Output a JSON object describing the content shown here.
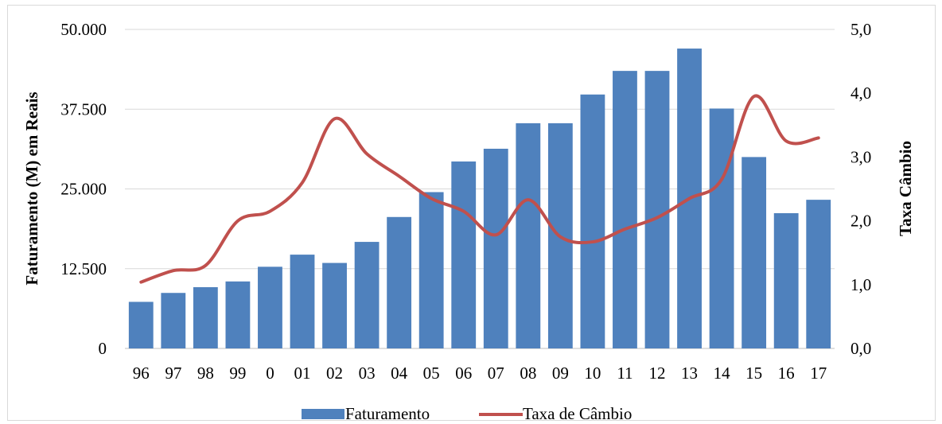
{
  "chart_data": {
    "type": "bar",
    "categories": [
      "96",
      "97",
      "98",
      "99",
      "0",
      "01",
      "02",
      "03",
      "04",
      "05",
      "06",
      "07",
      "08",
      "09",
      "10",
      "11",
      "12",
      "13",
      "14",
      "15",
      "16",
      "17"
    ],
    "series": [
      {
        "name": "Faturamento",
        "type": "bar",
        "axis": "left",
        "color": "#4f81bd",
        "values": [
          7300,
          8700,
          9600,
          10500,
          12800,
          14700,
          13400,
          16700,
          20600,
          24500,
          29300,
          31300,
          35300,
          35300,
          39800,
          43500,
          43500,
          47000,
          37600,
          30000,
          21200,
          23300
        ]
      },
      {
        "name": "Taxa de Câmbio",
        "type": "line",
        "axis": "right",
        "color": "#c0504d",
        "values": [
          1.04,
          1.22,
          1.3,
          2.0,
          2.15,
          2.6,
          3.6,
          3.05,
          2.7,
          2.35,
          2.15,
          1.78,
          2.33,
          1.75,
          1.67,
          1.87,
          2.05,
          2.35,
          2.65,
          3.95,
          3.25,
          3.3
        ]
      }
    ],
    "yaxis_left": {
      "label": "Faturamento (M) em Reais",
      "ticks": [
        "0",
        "12.500",
        "25.000",
        "37.500",
        "50.000"
      ],
      "tick_values": [
        0,
        12500,
        25000,
        37500,
        50000
      ],
      "ylim": [
        0,
        50000
      ]
    },
    "yaxis_right": {
      "label": "Taxa Câmbio",
      "ticks": [
        "0,0",
        "1,0",
        "2,0",
        "3,0",
        "4,0",
        "5,0"
      ],
      "tick_values": [
        0,
        1,
        2,
        3,
        4,
        5
      ],
      "ylim": [
        0,
        5
      ]
    },
    "grid": true,
    "legend": {
      "position": "bottom",
      "items": [
        "Faturamento",
        "Taxa de Câmbio"
      ]
    }
  }
}
